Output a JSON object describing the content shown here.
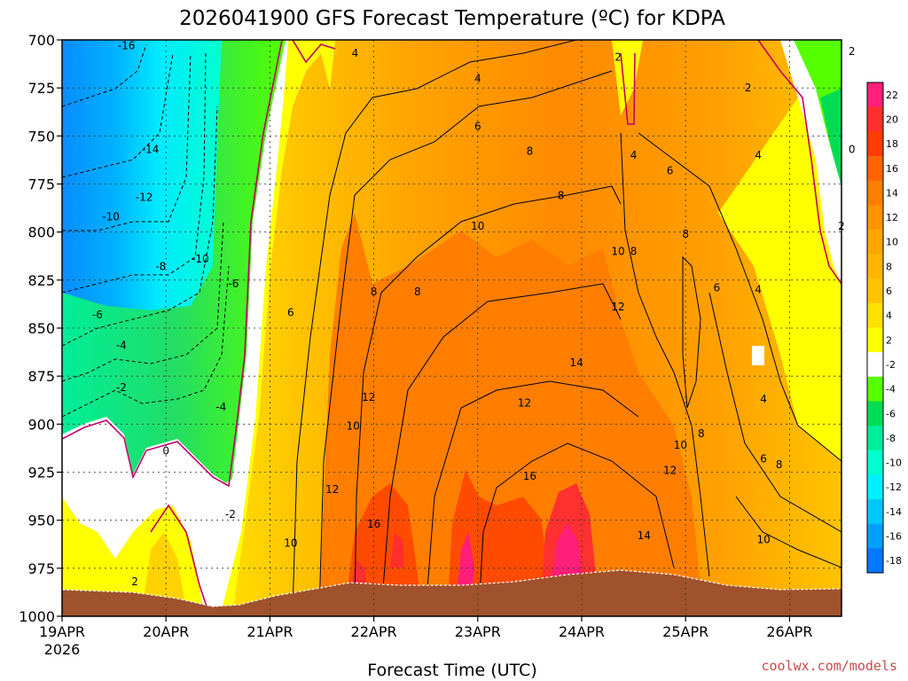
{
  "chart_data": {
    "type": "heatmap",
    "title": "2026041900 GFS Forecast Temperature (ºC) for KDPA",
    "xlabel": "Forecast Time (UTC)",
    "ylabel": "",
    "x_tick_labels": [
      "19APR",
      "20APR",
      "21APR",
      "22APR",
      "23APR",
      "24APR",
      "25APR",
      "26APR"
    ],
    "x_year_label": "2026",
    "x_range_days": [
      0,
      7.5
    ],
    "y_tick_labels": [
      "700",
      "725",
      "750",
      "775",
      "800",
      "825",
      "850",
      "875",
      "900",
      "925",
      "950",
      "975",
      "1000"
    ],
    "y_range_hpa": [
      700,
      1000
    ],
    "colorbar_labels": [
      "22",
      "20",
      "18",
      "16",
      "14",
      "12",
      "10",
      "8",
      "6",
      "4",
      "2",
      "-2",
      "-4",
      "-6",
      "-8",
      "-10",
      "-12",
      "-14",
      "-16",
      "-18"
    ],
    "colorbar_colors": [
      "#ff1e78",
      "#ff2e2e",
      "#ff3c00",
      "#ff6400",
      "#ff7e00",
      "#ff9400",
      "#ffa500",
      "#ffb400",
      "#ffc400",
      "#ffe000",
      "#ffff00",
      "#ffffff",
      "#55ff00",
      "#00dd55",
      "#00ee99",
      "#00ffd0",
      "#00f0ff",
      "#00c8ff",
      "#00a0ff",
      "#0078ff"
    ],
    "contour_interval": 2,
    "contour_labels": [
      {
        "text": "-16",
        "t": 0.62,
        "p": 703
      },
      {
        "text": "-14",
        "t": 0.85,
        "p": 757
      },
      {
        "text": "-12",
        "t": 0.79,
        "p": 782
      },
      {
        "text": "-10",
        "t": 0.47,
        "p": 792
      },
      {
        "text": "-10",
        "t": 1.33,
        "p": 814
      },
      {
        "text": "-8",
        "t": 0.95,
        "p": 818
      },
      {
        "text": "-6",
        "t": 0.34,
        "p": 843
      },
      {
        "text": "-6",
        "t": 1.65,
        "p": 827
      },
      {
        "text": "-4",
        "t": 0.57,
        "p": 859
      },
      {
        "text": "-4",
        "t": 1.53,
        "p": 891
      },
      {
        "text": "-2",
        "t": 0.57,
        "p": 881
      },
      {
        "text": "-2",
        "t": 1.62,
        "p": 947
      },
      {
        "text": "0",
        "t": 1.0,
        "p": 914
      },
      {
        "text": "2",
        "t": 0.7,
        "p": 982
      },
      {
        "text": "4",
        "t": 2.82,
        "p": 707
      },
      {
        "text": "4",
        "t": 4.0,
        "p": 720
      },
      {
        "text": "6",
        "t": 4.0,
        "p": 745
      },
      {
        "text": "6",
        "t": 2.2,
        "p": 842
      },
      {
        "text": "8",
        "t": 4.5,
        "p": 758
      },
      {
        "text": "8",
        "t": 4.8,
        "p": 781
      },
      {
        "text": "8",
        "t": 3.0,
        "p": 831
      },
      {
        "text": "8",
        "t": 3.42,
        "p": 831
      },
      {
        "text": "10",
        "t": 4.0,
        "p": 797
      },
      {
        "text": "10",
        "t": 2.8,
        "p": 901
      },
      {
        "text": "10",
        "t": 2.2,
        "p": 962
      },
      {
        "text": "12",
        "t": 2.95,
        "p": 886
      },
      {
        "text": "12",
        "t": 2.6,
        "p": 934
      },
      {
        "text": "12",
        "t": 4.45,
        "p": 889
      },
      {
        "text": "14",
        "t": 4.95,
        "p": 868
      },
      {
        "text": "16",
        "t": 3.0,
        "p": 952
      },
      {
        "text": "16",
        "t": 4.5,
        "p": 927
      },
      {
        "text": "2",
        "t": 5.35,
        "p": 709
      },
      {
        "text": "2",
        "t": 6.6,
        "p": 725
      },
      {
        "text": "2",
        "t": 7.6,
        "p": 706
      },
      {
        "text": "4",
        "t": 5.5,
        "p": 760
      },
      {
        "text": "6",
        "t": 5.85,
        "p": 768
      },
      {
        "text": "4",
        "t": 6.7,
        "p": 760
      },
      {
        "text": "0",
        "t": 7.6,
        "p": 757
      },
      {
        "text": "2",
        "t": 7.5,
        "p": 797
      },
      {
        "text": "8",
        "t": 6.0,
        "p": 801
      },
      {
        "text": "10",
        "t": 5.35,
        "p": 810
      },
      {
        "text": "8",
        "t": 5.5,
        "p": 810
      },
      {
        "text": "6",
        "t": 6.3,
        "p": 829
      },
      {
        "text": "4",
        "t": 6.7,
        "p": 830
      },
      {
        "text": "12",
        "t": 5.35,
        "p": 839
      },
      {
        "text": "4",
        "t": 6.75,
        "p": 887
      },
      {
        "text": "10",
        "t": 5.95,
        "p": 911
      },
      {
        "text": "8",
        "t": 6.15,
        "p": 905
      },
      {
        "text": "12",
        "t": 5.85,
        "p": 924
      },
      {
        "text": "6",
        "t": 6.75,
        "p": 918
      },
      {
        "text": "8",
        "t": 6.9,
        "p": 921
      },
      {
        "text": "14",
        "t": 5.6,
        "p": 958
      },
      {
        "text": "10",
        "t": 6.75,
        "p": 960
      }
    ]
  },
  "credit": "coolwx.com/models"
}
